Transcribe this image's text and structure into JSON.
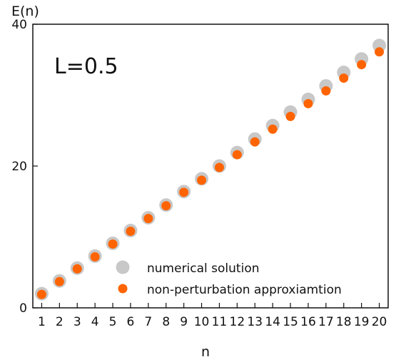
{
  "chart_data": {
    "type": "scatter",
    "ylabel": "E(n)",
    "xlabel": "n",
    "annotation": "L=0.5",
    "x": [
      1,
      2,
      3,
      4,
      5,
      6,
      7,
      8,
      9,
      10,
      11,
      12,
      13,
      14,
      15,
      16,
      17,
      18,
      19,
      20
    ],
    "xticks": [
      "1",
      "2",
      "3",
      "4",
      "5",
      "6",
      "7",
      "8",
      "9",
      "10",
      "11",
      "12",
      "13",
      "14",
      "15",
      "16",
      "17",
      "18",
      "19",
      "20"
    ],
    "yticks": [
      "0",
      "20",
      "40"
    ],
    "ylim": [
      0,
      40
    ],
    "xlim": [
      0.5,
      20.5
    ],
    "grid": false,
    "legend_position": "bottom-right",
    "series": [
      {
        "name": "numerical solution",
        "color": "#c8c8c8",
        "marker": "large-circle",
        "values": [
          2.0,
          3.8,
          5.6,
          7.3,
          9.1,
          10.9,
          12.7,
          14.5,
          16.4,
          18.2,
          20.0,
          21.9,
          23.8,
          25.7,
          27.6,
          29.4,
          31.3,
          33.2,
          35.1,
          37.0
        ]
      },
      {
        "name": "non-perturbation approxiamtion",
        "color": "#ff6400",
        "marker": "small-circle",
        "values": [
          1.9,
          3.7,
          5.5,
          7.2,
          9.0,
          10.8,
          12.6,
          14.4,
          16.3,
          18.0,
          19.8,
          21.6,
          23.4,
          25.2,
          27.0,
          28.8,
          30.6,
          32.4,
          34.3,
          36.1
        ]
      }
    ]
  }
}
